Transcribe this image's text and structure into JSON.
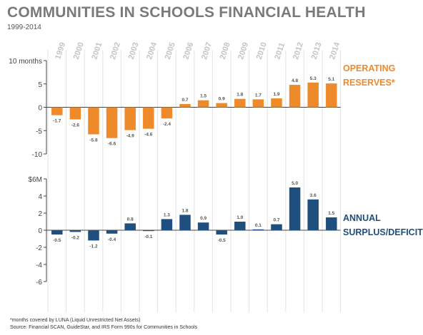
{
  "title": "COMMUNITIES IN SCHOOLS FINANCIAL HEALTH",
  "subtitle": "1999-2014",
  "footnote": "*months covered by LUNA (Liquid Unrestricted Net Assets)",
  "source": "Source: Financial SCAN, GuideStar, and IRS Form 990s for Communities in Schools",
  "colors": {
    "operating": "#ee8a2a",
    "surplus": "#1f4f7f",
    "year_label": "#c4c4c4",
    "axis": "#444444",
    "divider": "#e3e3e3"
  },
  "chart_data": [
    {
      "type": "bar",
      "categories": [
        "1999",
        "2000",
        "2001",
        "2002",
        "2003",
        "2004",
        "2005",
        "2006",
        "2007",
        "2008",
        "2009",
        "2010",
        "2011",
        "2012",
        "2013",
        "2014"
      ],
      "series": [
        {
          "name": "OPERATING RESERVES*",
          "values": [
            -1.7,
            -2.6,
            -5.8,
            -6.6,
            -4.9,
            -4.6,
            -2.4,
            0.7,
            1.5,
            0.9,
            1.8,
            1.7,
            1.9,
            4.8,
            5.3,
            5.1
          ]
        }
      ],
      "ylim": [
        -10,
        10
      ],
      "yticks": [
        "10 months",
        "5",
        "0",
        "-5",
        "-10"
      ],
      "value_labels": [
        "-1.7",
        "-2.6",
        "-5.8",
        "-6.6",
        "-4.9",
        "-4.6",
        "-2.4",
        "0.7",
        "1.5",
        "0.9",
        "1.8",
        "1.7",
        "1.9",
        "4.8",
        "5.3",
        "5.1"
      ]
    },
    {
      "type": "bar",
      "categories": [
        "1999",
        "2000",
        "2001",
        "2002",
        "2003",
        "2004",
        "2005",
        "2006",
        "2007",
        "2008",
        "2009",
        "2010",
        "2011",
        "2012",
        "2013",
        "2014"
      ],
      "series": [
        {
          "name": "ANNUAL SURPLUS/DEFICIT",
          "values": [
            -0.5,
            -0.2,
            -1.2,
            -0.4,
            0.8,
            -0.1,
            1.3,
            1.8,
            0.9,
            -0.5,
            1.0,
            0.1,
            0.7,
            5.0,
            3.6,
            1.5
          ]
        }
      ],
      "ylim": [
        -6,
        6
      ],
      "yticks": [
        "$6M",
        "4",
        "2",
        "0",
        "-2",
        "-4",
        "-6"
      ],
      "value_labels": [
        "-0.5",
        "-0.2",
        "-1.2",
        "-0.4",
        "0.8",
        "-0.1",
        "1.3",
        "1.8",
        "0.9",
        "-0.5",
        "1.0",
        "0.1",
        "0.7",
        "5.0",
        "3.6",
        "1.5"
      ]
    }
  ],
  "labels": {
    "operating": [
      "OPERATING",
      "RESERVES*"
    ],
    "surplus": [
      "ANNUAL",
      "SURPLUS/DEFICIT"
    ]
  }
}
